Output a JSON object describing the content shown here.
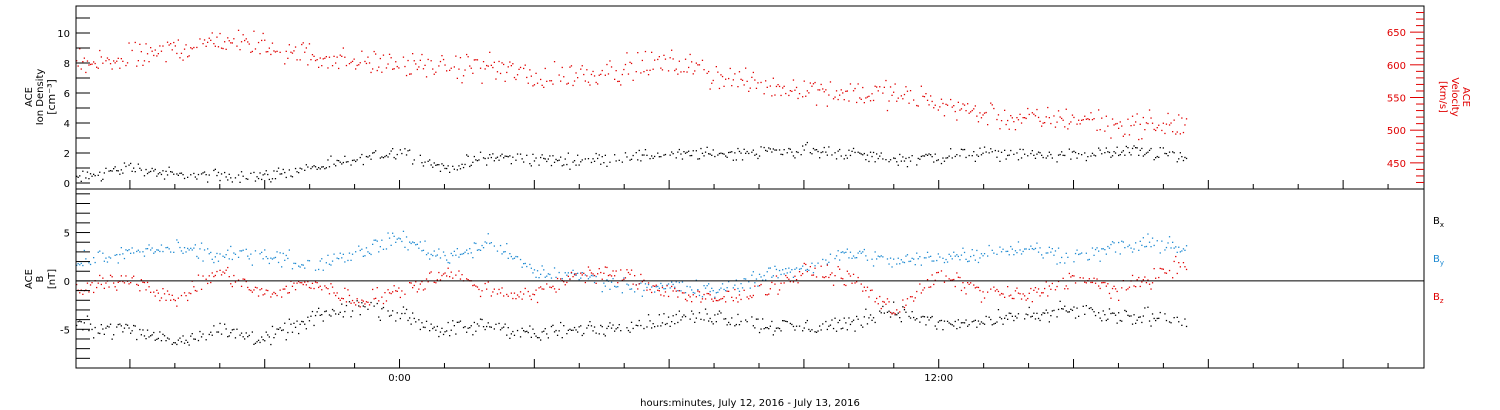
{
  "figure": {
    "x_label": "hours:minutes, July 12, 2016 - July 13, 2016",
    "x_tick_labels": [
      "0:00",
      "12:00"
    ],
    "x_range_hours": [
      -7.2,
      22.8
    ]
  },
  "chart_data": [
    {
      "type": "scatter",
      "panel": "top",
      "left_axis": {
        "label_lines": [
          "ACE",
          "Ion Density",
          "[cm⁻³]"
        ],
        "ticks": [
          0,
          2,
          4,
          6,
          8,
          10
        ],
        "ylim": [
          -0.4,
          11.8
        ],
        "color": "#000000"
      },
      "right_axis": {
        "label_lines": [
          "ACE",
          "Velocity",
          "[km/s]"
        ],
        "ticks": [
          450,
          500,
          550,
          600,
          650
        ],
        "ylim": [
          410,
          690
        ],
        "color": "#e00000"
      },
      "series": [
        {
          "name": "Ion Density",
          "axis": "left",
          "color": "#000000",
          "x_hours": [
            -7.2,
            -6.0,
            -5.0,
            -4.0,
            -3.0,
            -2.0,
            -1.0,
            0.0,
            1.0,
            2.0,
            3.0,
            4.0,
            5.0,
            6.0,
            7.0,
            8.0,
            9.0,
            10.0,
            11.0,
            12.0,
            13.0,
            14.0,
            15.0,
            16.0,
            17.0,
            17.5
          ],
          "values": [
            0.3,
            1.1,
            0.5,
            0.5,
            0.5,
            1.0,
            1.5,
            2.2,
            1.0,
            1.8,
            1.6,
            1.5,
            1.8,
            1.9,
            2.0,
            2.1,
            2.2,
            2.0,
            1.6,
            1.8,
            2.0,
            1.9,
            1.9,
            2.1,
            2.0,
            1.6
          ]
        },
        {
          "name": "Velocity",
          "axis": "right",
          "color": "#e00000",
          "x_hours": [
            -7.2,
            -6.0,
            -5.0,
            -4.0,
            -3.0,
            -2.0,
            -1.0,
            0.0,
            1.0,
            2.0,
            3.0,
            4.0,
            5.0,
            6.0,
            7.0,
            8.0,
            9.0,
            10.0,
            11.0,
            12.0,
            13.0,
            14.0,
            15.0,
            16.0,
            17.0,
            17.5
          ],
          "values": [
            600,
            610,
            625,
            640,
            630,
            615,
            605,
            600,
            595,
            600,
            580,
            585,
            595,
            605,
            585,
            570,
            565,
            560,
            555,
            545,
            525,
            515,
            520,
            510,
            508,
            510
          ]
        }
      ]
    },
    {
      "type": "scatter",
      "panel": "bottom",
      "left_axis": {
        "label_lines": [
          "ACE",
          "B",
          "[nT]"
        ],
        "ticks": [
          -5,
          0,
          5
        ],
        "ylim": [
          -9,
          9.5
        ],
        "color": "#000000"
      },
      "zero_line": true,
      "series": [
        {
          "name": "Bx",
          "color": "#000000",
          "x_hours": [
            -7.2,
            -6.0,
            -5.0,
            -4.0,
            -3.0,
            -2.0,
            -1.0,
            0.0,
            1.0,
            2.0,
            3.0,
            4.0,
            5.0,
            6.0,
            7.0,
            8.0,
            9.0,
            10.0,
            11.0,
            12.0,
            13.0,
            14.0,
            15.0,
            16.0,
            17.0,
            17.5
          ],
          "values": [
            -4.5,
            -5.0,
            -6.0,
            -5.0,
            -6.0,
            -4.0,
            -2.5,
            -3.5,
            -5.0,
            -4.5,
            -5.5,
            -5.0,
            -4.5,
            -4.0,
            -3.5,
            -4.5,
            -4.8,
            -4.3,
            -3.0,
            -4.5,
            -4.3,
            -3.5,
            -3.0,
            -3.8,
            -3.5,
            -4.5
          ]
        },
        {
          "name": "By",
          "color": "#1e8ad2",
          "x_hours": [
            -7.2,
            -6.0,
            -5.0,
            -4.0,
            -3.0,
            -2.0,
            -1.0,
            0.0,
            1.0,
            2.0,
            3.0,
            4.0,
            5.0,
            6.0,
            7.0,
            8.0,
            9.0,
            10.0,
            11.0,
            12.0,
            13.0,
            14.0,
            15.0,
            16.0,
            17.0,
            17.5
          ],
          "values": [
            2.0,
            3.0,
            3.5,
            2.5,
            3.0,
            1.5,
            3.0,
            4.5,
            2.5,
            4.0,
            1.0,
            0.5,
            -0.5,
            -0.5,
            -1.0,
            0.5,
            1.5,
            3.0,
            2.0,
            2.5,
            3.0,
            3.5,
            2.5,
            3.5,
            4.0,
            3.0
          ]
        },
        {
          "name": "Bz",
          "color": "#e00000",
          "x_hours": [
            -7.2,
            -6.0,
            -5.0,
            -4.0,
            -3.0,
            -2.0,
            -1.0,
            0.0,
            1.0,
            2.0,
            3.0,
            4.0,
            5.0,
            6.0,
            7.0,
            8.0,
            9.0,
            10.0,
            11.0,
            12.0,
            13.0,
            14.0,
            15.0,
            16.0,
            17.0,
            17.5
          ],
          "values": [
            -1.0,
            0.5,
            -2.0,
            1.0,
            -1.5,
            0.0,
            -2.0,
            -1.0,
            1.0,
            -1.0,
            -1.5,
            1.0,
            0.5,
            -1.0,
            -2.0,
            -1.0,
            1.0,
            0.5,
            -3.0,
            0.5,
            -1.0,
            -1.5,
            0.5,
            -1.0,
            1.0,
            2.0
          ]
        }
      ],
      "legend": {
        "position": "right",
        "entries": [
          {
            "base": "B",
            "sub": "x",
            "color": "#000000"
          },
          {
            "base": "B",
            "sub": "y",
            "color": "#1e8ad2"
          },
          {
            "base": "B",
            "sub": "z",
            "color": "#e00000"
          }
        ]
      }
    }
  ]
}
